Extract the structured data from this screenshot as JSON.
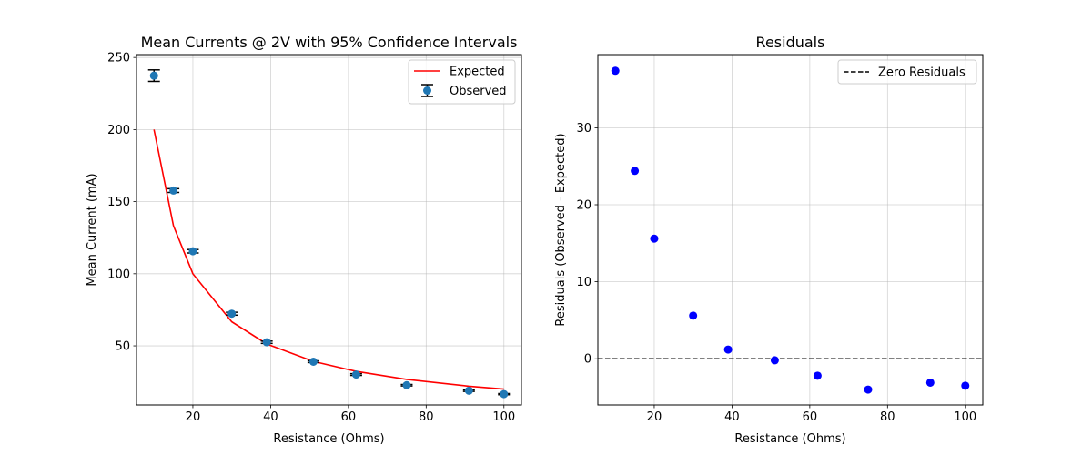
{
  "chart_data": [
    {
      "type": "scatter",
      "title": "Mean Currents @ 2V with 95% Confidence Intervals",
      "xlabel": "Resistance (Ohms)",
      "ylabel": "Mean Current (mA)",
      "xlim": [
        5.5,
        104.5
      ],
      "ylim": [
        9,
        252
      ],
      "xticks": [
        20,
        40,
        60,
        80,
        100
      ],
      "yticks": [
        50,
        100,
        150,
        200,
        250
      ],
      "grid": true,
      "legend_position": "top-right",
      "series": [
        {
          "name": "Expected",
          "kind": "line",
          "color": "#ff0000",
          "x": [
            10,
            15,
            20,
            30,
            39,
            51,
            62,
            75,
            91,
            100
          ],
          "y": [
            200,
            133.3,
            100,
            66.7,
            51.3,
            39.2,
            32.3,
            26.7,
            22.0,
            20.0
          ]
        },
        {
          "name": "Observed",
          "kind": "errorbar",
          "color": "#1f77b4",
          "errcolor": "#000000",
          "x": [
            10,
            15,
            20,
            30,
            39,
            51,
            62,
            75,
            91,
            100
          ],
          "y": [
            237.4,
            157.7,
            115.6,
            72.3,
            52.5,
            39.0,
            30.1,
            22.7,
            18.9,
            16.5
          ],
          "yerr": [
            4,
            1.3,
            1.2,
            1.0,
            0.8,
            0.6,
            0.6,
            0.5,
            0.5,
            0.4
          ]
        }
      ]
    },
    {
      "type": "scatter",
      "title": "Residuals",
      "xlabel": "Resistance (Ohms)",
      "ylabel": "Residuals (Observed - Expected)",
      "xlim": [
        5.5,
        104.5
      ],
      "ylim": [
        -6,
        39.5
      ],
      "xticks": [
        20,
        40,
        60,
        80,
        100
      ],
      "yticks": [
        0,
        10,
        20,
        30
      ],
      "grid": true,
      "legend_position": "top-right",
      "series": [
        {
          "name": "Zero Residuals",
          "kind": "hline",
          "color": "#000000",
          "y": 0
        },
        {
          "name": "",
          "kind": "points",
          "color": "#0000ff",
          "x": [
            10,
            15,
            20,
            30,
            39,
            51,
            62,
            75,
            91,
            100
          ],
          "y": [
            37.4,
            24.4,
            15.6,
            5.6,
            1.2,
            -0.2,
            -2.2,
            -4.0,
            -3.1,
            -3.5
          ]
        }
      ]
    }
  ]
}
